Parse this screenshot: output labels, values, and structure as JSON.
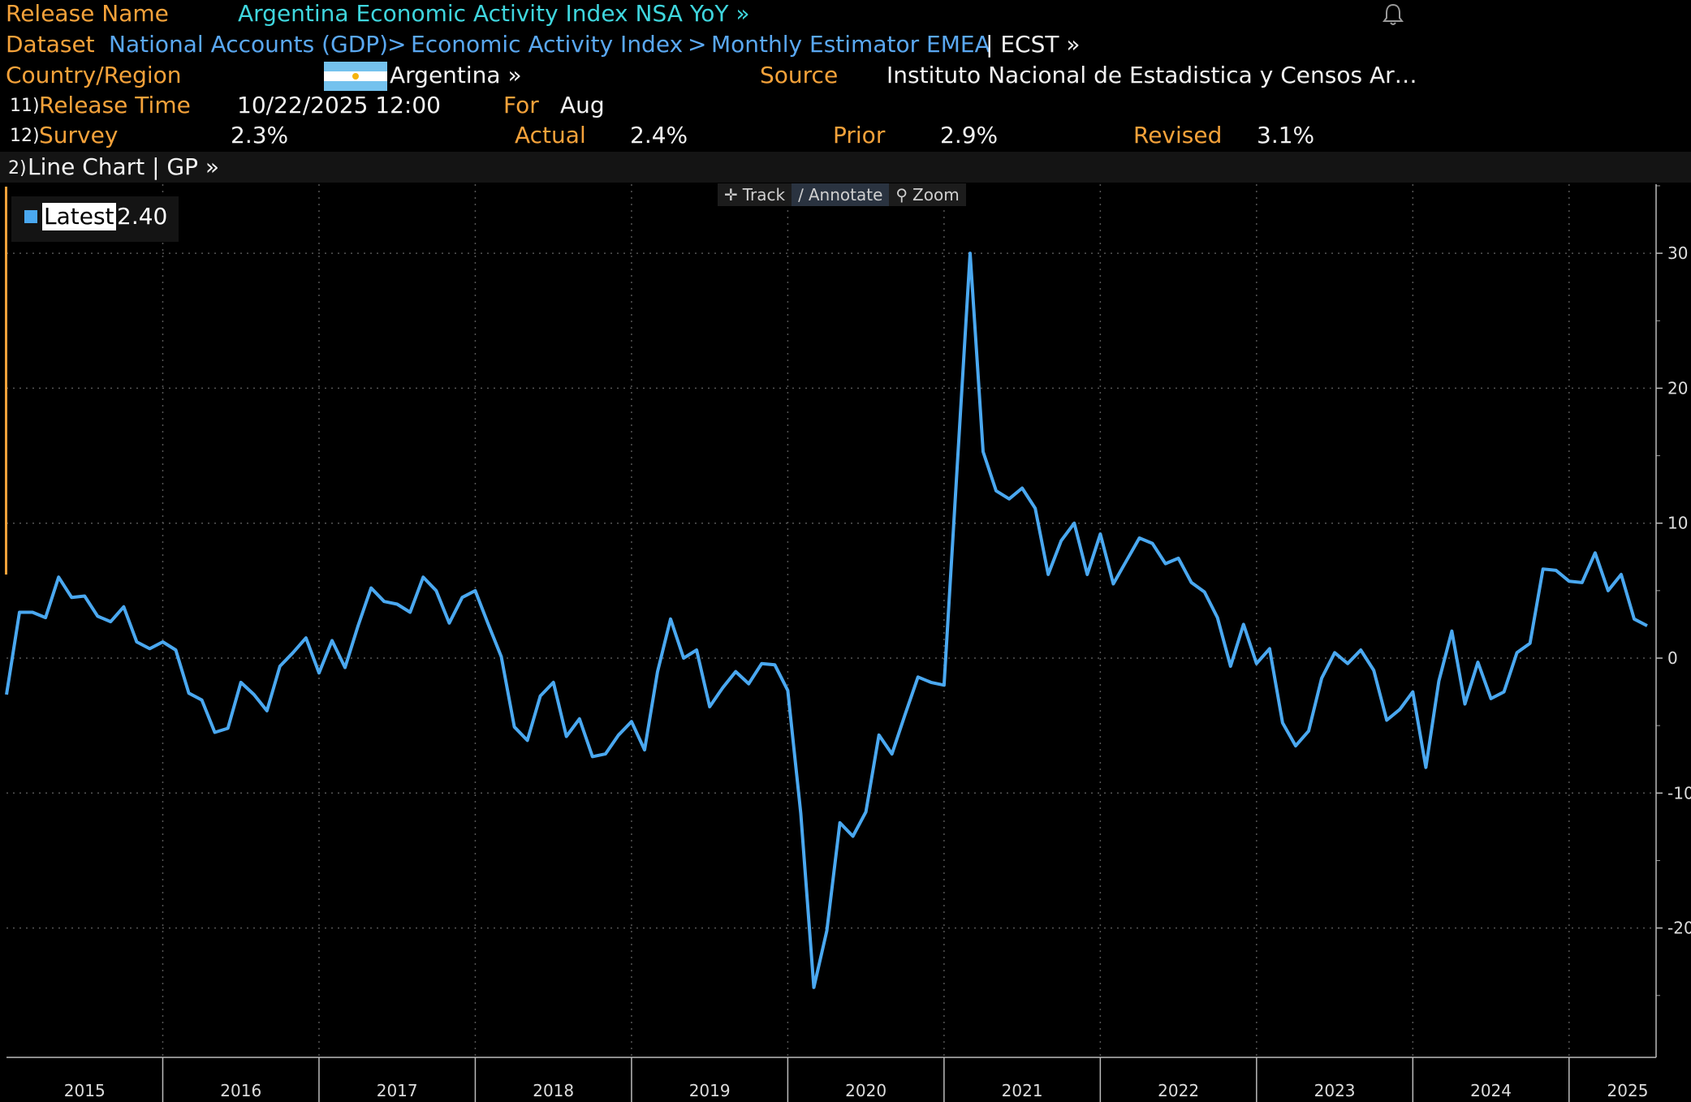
{
  "header": {
    "release_name_label": "Release Name",
    "release_name": "Argentina Economic Activity Index NSA YoY »",
    "dataset_label": "Dataset",
    "dataset_path": [
      "National Accounts (GDP)",
      "Economic Activity Index",
      "Monthly Estimator EMEA"
    ],
    "dataset_tail": "| ECST »",
    "country_label": "Country/Region",
    "country": "Argentina »",
    "source_label": "Source",
    "source": "Instituto Nacional de Estadistica y Censos Ar…",
    "release_time_num": "11)",
    "release_time_label": "Release Time",
    "release_time": "10/22/2025 12:00",
    "for_label": "For",
    "for_value": "Aug",
    "survey_num": "12)",
    "survey_label": "Survey",
    "survey": "2.3%",
    "actual_label": "Actual",
    "actual": "2.4%",
    "prior_label": "Prior",
    "prior": "2.9%",
    "revised_label": "Revised",
    "revised": "3.1%",
    "chart_menu_num": "2)",
    "chart_menu": "Line Chart | GP »"
  },
  "toolbar": {
    "track": "Track",
    "annotate": "Annotate",
    "zoom": "Zoom"
  },
  "legend": {
    "label": "Latest",
    "value": "2.40"
  },
  "colors": {
    "label_orange": "#f5a23a",
    "title_cyan": "#3fd6de",
    "link_blue": "#5aa8f2",
    "series": "#4aa8f0",
    "background": "#000000"
  },
  "icons": [
    "bell-icon",
    "argentina-flag-icon",
    "track-icon",
    "annotate-icon",
    "zoom-icon"
  ],
  "chart_data": {
    "type": "line",
    "x_ticks": [
      "2015",
      "2016",
      "2017",
      "2018",
      "2019",
      "2020",
      "2021",
      "2022",
      "2023",
      "2024",
      "2025"
    ],
    "y_ticks": [
      30,
      20,
      10,
      0,
      -10,
      -20
    ],
    "ylim": [
      -27,
      35
    ],
    "grid": true,
    "legend_position": "top-left",
    "series": [
      {
        "name": "Latest",
        "x_start": "2015-01",
        "frequency": "monthly",
        "values": [
          -2.7,
          3.4,
          3.4,
          3.0,
          6.0,
          4.5,
          4.6,
          3.1,
          2.7,
          3.8,
          1.2,
          0.7,
          1.2,
          0.6,
          -2.6,
          -3.1,
          -5.5,
          -5.2,
          -1.8,
          -2.7,
          -3.9,
          -0.6,
          0.4,
          1.5,
          -1.1,
          1.3,
          -0.7,
          2.4,
          5.2,
          4.2,
          4.0,
          3.4,
          6.0,
          5.0,
          2.6,
          4.5,
          5.0,
          2.5,
          0.1,
          -5.1,
          -6.1,
          -2.8,
          -1.8,
          -5.8,
          -4.5,
          -7.3,
          -7.1,
          -5.7,
          -4.7,
          -6.8,
          -1.0,
          2.9,
          0.0,
          0.6,
          -3.6,
          -2.2,
          -1.0,
          -1.9,
          -0.4,
          -0.5,
          -2.4,
          -11.5,
          -24.4,
          -20.2,
          -12.2,
          -13.2,
          -11.4,
          -5.7,
          -7.1,
          -4.2,
          -1.4,
          -1.8,
          -2.0,
          14.0,
          30.0,
          15.3,
          12.4,
          11.8,
          12.6,
          11.1,
          6.2,
          8.7,
          10.0,
          6.2,
          9.2,
          5.5,
          7.2,
          8.9,
          8.5,
          7.0,
          7.4,
          5.6,
          4.9,
          3.0,
          -0.6,
          2.5,
          -0.4,
          0.7,
          -4.8,
          -6.5,
          -5.4,
          -1.5,
          0.4,
          -0.4,
          0.6,
          -0.9,
          -4.6,
          -3.8,
          -2.5,
          -8.1,
          -1.7,
          2.0,
          -3.4,
          -0.3,
          -3.0,
          -2.5,
          0.4,
          1.1,
          6.6,
          6.5,
          5.7,
          5.6,
          7.8,
          5.0,
          6.2,
          2.9,
          2.4
        ]
      }
    ]
  }
}
